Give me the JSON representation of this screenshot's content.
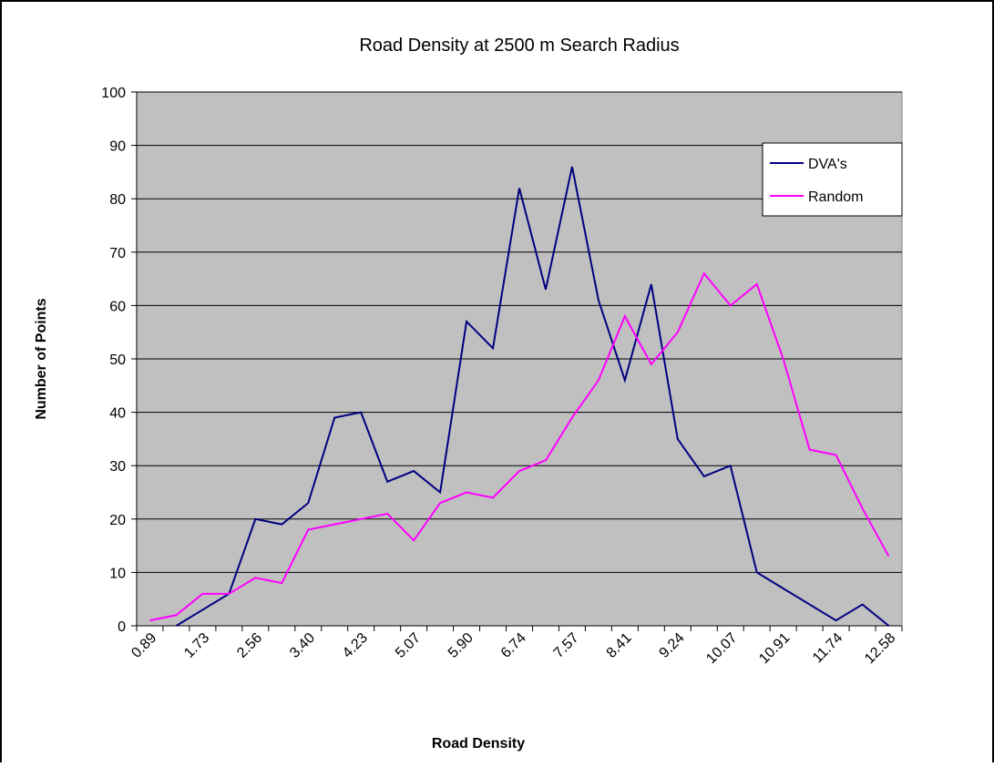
{
  "chart_data": {
    "type": "line",
    "title": "Road Density at 2500 m Search Radius",
    "x_label": "Road Density",
    "y_label": "Number of Points",
    "categories": [
      "0.89",
      null,
      "1.73",
      null,
      "2.56",
      null,
      "3.40",
      null,
      "4.23",
      null,
      "5.07",
      null,
      "5.90",
      null,
      "6.74",
      null,
      "7.57",
      null,
      "8.41",
      null,
      "9.24",
      null,
      "10.07",
      null,
      "10.91",
      null,
      "11.74",
      null,
      "12.58"
    ],
    "series": [
      {
        "name": "DVA's",
        "color": "#000080",
        "values": [
          null,
          0,
          3,
          6,
          20,
          19,
          23,
          39,
          40,
          27,
          29,
          25,
          57,
          52,
          82,
          63,
          86,
          61,
          46,
          64,
          35,
          28,
          30,
          10,
          7,
          4,
          1,
          4,
          0
        ]
      },
      {
        "name": "Random",
        "color": "#ff00ff",
        "values": [
          1,
          2,
          6,
          6,
          9,
          8,
          18,
          19,
          20,
          21,
          16,
          23,
          25,
          24,
          29,
          31,
          39,
          46,
          58,
          49,
          55,
          66,
          60,
          64,
          50,
          33,
          32,
          22,
          13
        ]
      }
    ],
    "ylim": [
      0,
      100
    ],
    "yticks": [
      0,
      10,
      20,
      30,
      40,
      50,
      60,
      70,
      80,
      90,
      100
    ],
    "grid": true,
    "legend": "upper right",
    "plot_background": "#c0c0c0"
  }
}
